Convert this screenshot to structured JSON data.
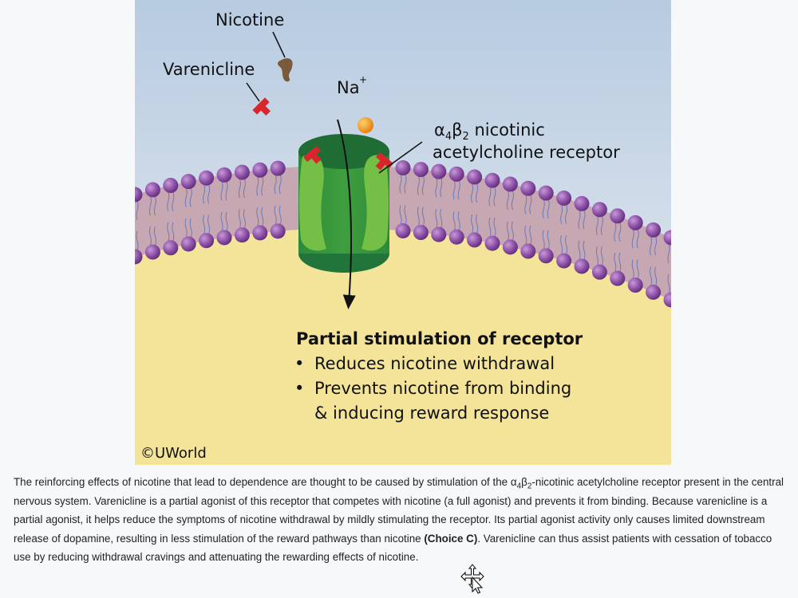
{
  "figure": {
    "labels": {
      "nicotine": "Nicotine",
      "varenicline": "Varenicline",
      "sodium": "Na",
      "sodium_charge": "+",
      "receptor_line1_prefix": "α",
      "receptor_sub1": "4",
      "receptor_mid": "β",
      "receptor_sub2": "2",
      "receptor_line1_suffix": " nicotinic",
      "receptor_line2": "acetylcholine receptor"
    },
    "caption": {
      "title": "Partial stimulation of receptor",
      "bullet_symbol": "•",
      "bullets": [
        "Reduces nicotine withdrawal",
        "Prevents nicotine from binding",
        "& inducing reward response"
      ]
    },
    "copyright": "©UWorld",
    "colors": {
      "sky_top": "#b9cce2",
      "sky_bottom": "#eef1f3",
      "cytoplasm": "#f3e49a",
      "lipid_head": "#8c4fa6",
      "lipid_tail_band": "#c9a9b4",
      "receptor_light": "#6cb743",
      "receptor_dark": "#2f8a3c",
      "varenicline": "#d9262c",
      "nicotine": "#7a5a3a",
      "sodium": "#f39a16"
    }
  },
  "explanation": {
    "p1_a": "The reinforcing effects of nicotine that lead to dependence are thought to be caused by stimulation of the α",
    "sub_a": "4",
    "p1_b": "β",
    "sub_b": "2",
    "p1_c": "-nicotinic acetylcholine receptor present in the central nervous system.  Varenicline is a partial agonist of this receptor that competes with nicotine (a full agonist) and prevents it from binding.  Because varenicline is a partial agonist, it helps reduce the symptoms of nicotine withdrawal by mildly stimulating the receptor.  Its partial agonist activity only causes limited downstream release of dopamine, resulting in less stimulation of the reward pathways than nicotine ",
    "choice": "(Choice C)",
    "p1_d": ".  Varenicline can thus assist patients with cessation of tobacco use by reducing withdrawal cravings and attenuating the rewarding effects of nicotine."
  }
}
